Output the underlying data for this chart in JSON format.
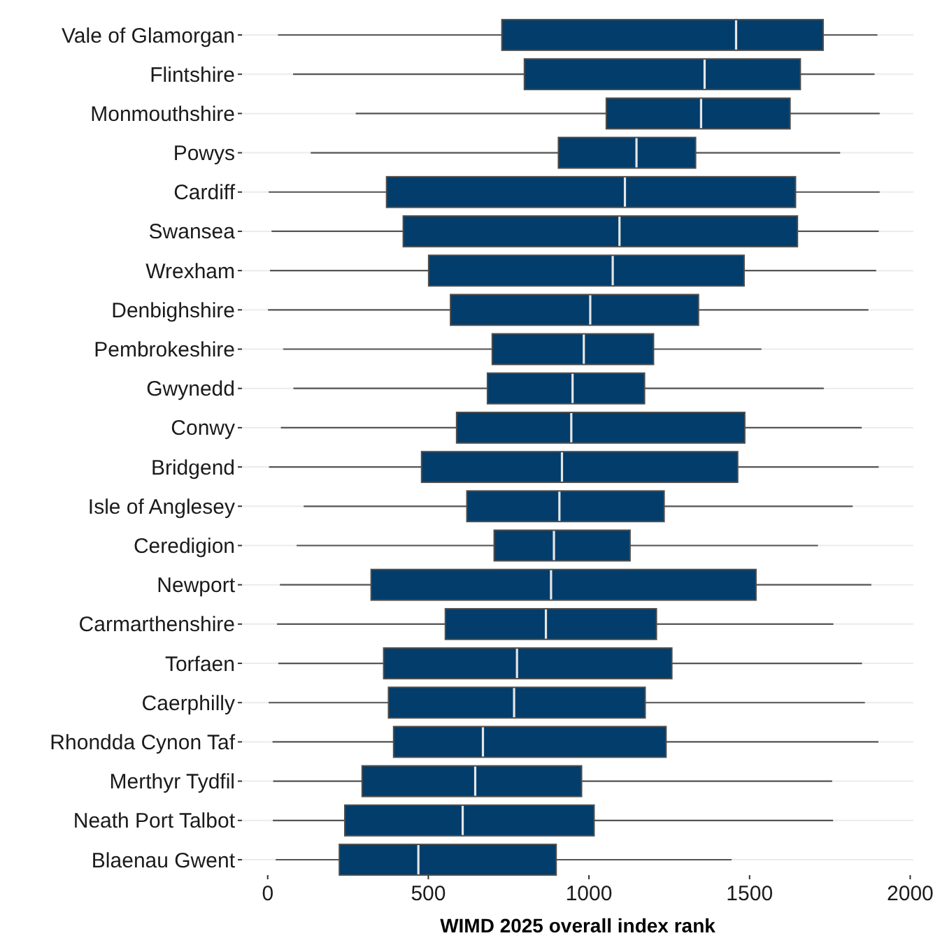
{
  "chart_data": {
    "type": "box",
    "orientation": "horizontal",
    "xlabel": "WIMD 2025 overall index rank",
    "grid": "y",
    "categories": [
      "Vale of Glamorgan",
      "Flintshire",
      "Monmouthshire",
      "Powys",
      "Cardiff",
      "Swansea",
      "Wrexham",
      "Denbighshire",
      "Pembrokeshire",
      "Gwynedd",
      "Conwy",
      "Bridgend",
      "Isle of Anglesey",
      "Ceredigion",
      "Newport",
      "Carmarthenshire",
      "Torfaen",
      "Caerphilly",
      "Rhondda Cynon Taf",
      "Merthyr Tydfil",
      "Neath Port Talbot",
      "Blaenau Gwent"
    ],
    "xlim": [
      -80,
      2010
    ],
    "xticks": [
      0,
      500,
      1000,
      1500,
      2000
    ],
    "series": [
      {
        "color": "#023d6b",
        "boxes": [
          {
            "low": 32,
            "q1": 729,
            "median": 1458,
            "q3": 1729,
            "high": 1898
          },
          {
            "low": 79,
            "q1": 799,
            "median": 1360,
            "q3": 1658,
            "high": 1889
          },
          {
            "low": 274,
            "q1": 1054,
            "median": 1349,
            "q3": 1626,
            "high": 1905
          },
          {
            "low": 134,
            "q1": 905,
            "median": 1148,
            "q3": 1332,
            "high": 1782
          },
          {
            "low": 3,
            "q1": 370,
            "median": 1112,
            "q3": 1643,
            "high": 1905
          },
          {
            "low": 12,
            "q1": 422,
            "median": 1095,
            "q3": 1649,
            "high": 1902
          },
          {
            "low": 7,
            "q1": 501,
            "median": 1074,
            "q3": 1483,
            "high": 1894
          },
          {
            "low": 1,
            "q1": 569,
            "median": 1004,
            "q3": 1341,
            "high": 1870
          },
          {
            "low": 48,
            "q1": 699,
            "median": 984,
            "q3": 1201,
            "high": 1537
          },
          {
            "low": 80,
            "q1": 684,
            "median": 949,
            "q3": 1173,
            "high": 1731
          },
          {
            "low": 41,
            "q1": 588,
            "median": 945,
            "q3": 1485,
            "high": 1849
          },
          {
            "low": 4,
            "q1": 479,
            "median": 916,
            "q3": 1463,
            "high": 1902
          },
          {
            "low": 112,
            "q1": 620,
            "median": 908,
            "q3": 1234,
            "high": 1821
          },
          {
            "low": 90,
            "q1": 705,
            "median": 891,
            "q3": 1128,
            "high": 1713
          },
          {
            "low": 38,
            "q1": 322,
            "median": 882,
            "q3": 1520,
            "high": 1879
          },
          {
            "low": 29,
            "q1": 553,
            "median": 866,
            "q3": 1210,
            "high": 1761
          },
          {
            "low": 33,
            "q1": 361,
            "median": 776,
            "q3": 1258,
            "high": 1850
          },
          {
            "low": 3,
            "q1": 376,
            "median": 767,
            "q3": 1175,
            "high": 1859
          },
          {
            "low": 15,
            "q1": 392,
            "median": 670,
            "q3": 1240,
            "high": 1901
          },
          {
            "low": 17,
            "q1": 294,
            "median": 646,
            "q3": 977,
            "high": 1757
          },
          {
            "low": 16,
            "q1": 240,
            "median": 607,
            "q3": 1016,
            "high": 1760
          },
          {
            "low": 25,
            "q1": 223,
            "median": 469,
            "q3": 898,
            "high": 1444
          }
        ]
      }
    ]
  }
}
